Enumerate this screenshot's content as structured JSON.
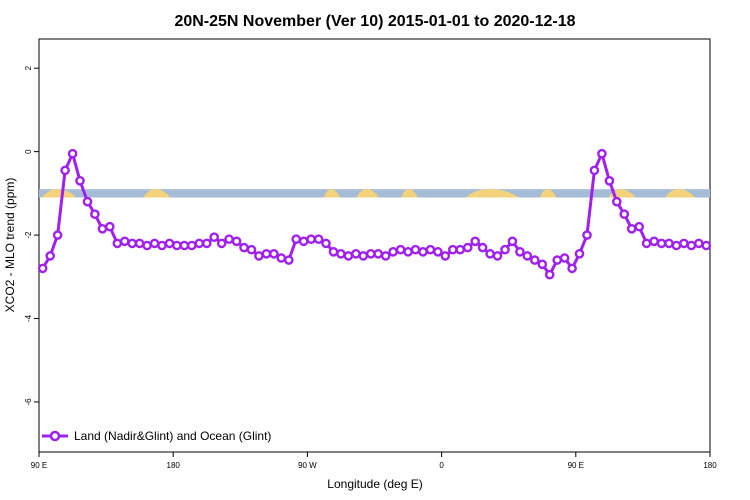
{
  "chart_data": {
    "type": "line",
    "title": "20N-25N November (Ver 10)   2015-01-01 to 2020-12-18",
    "xlabel": "Longitude (deg E)",
    "ylabel": "XCO2 - MLO trend (ppm)",
    "xlim": [
      90,
      540
    ],
    "ylim": [
      -7.2,
      2.7
    ],
    "x_ticks": [
      {
        "value": 90,
        "label": "90 E"
      },
      {
        "value": 180,
        "label": "180"
      },
      {
        "value": 270,
        "label": "90 W"
      },
      {
        "value": 360,
        "label": "0"
      },
      {
        "value": 450,
        "label": "90 E"
      },
      {
        "value": 540,
        "label": "180"
      }
    ],
    "y_ticks": [
      {
        "value": 2,
        "label": "2"
      },
      {
        "value": 0,
        "label": "0"
      },
      {
        "value": -2,
        "label": "-2"
      },
      {
        "value": -4,
        "label": "-4"
      },
      {
        "value": -6,
        "label": "-6"
      }
    ],
    "map_band": {
      "y_top": -0.9,
      "y_bottom": -1.1,
      "ocean_color": "#a6bcd6",
      "land_color": "#f2d27a"
    },
    "legend": {
      "label": "Land (Nadir&Glint) and Ocean (Glint)",
      "position": "bottom-left"
    },
    "series": [
      {
        "name": "Land (Nadir&Glint) and Ocean (Glint)",
        "color": "#a020f0",
        "x": [
          92.5,
          97.5,
          102.5,
          107.5,
          112.5,
          117.5,
          122.5,
          127.5,
          132.5,
          137.5,
          142.5,
          147.5,
          152.5,
          157.5,
          162.5,
          167.5,
          172.5,
          177.5,
          182.5,
          187.5,
          192.5,
          197.5,
          202.5,
          207.5,
          212.5,
          217.5,
          222.5,
          227.5,
          232.5,
          237.5,
          242.5,
          247.5,
          252.5,
          257.5,
          262.5,
          267.5,
          272.5,
          277.5,
          282.5,
          287.5,
          292.5,
          297.5,
          302.5,
          307.5,
          312.5,
          317.5,
          322.5,
          327.5,
          332.5,
          337.5,
          342.5,
          347.5,
          352.5,
          357.5,
          362.5,
          367.5,
          372.5,
          377.5,
          382.5,
          387.5,
          392.5,
          397.5,
          402.5,
          407.5,
          412.5,
          417.5,
          422.5,
          427.5,
          432.5,
          437.5,
          442.5,
          447.5,
          452.5,
          457.5,
          462.5,
          467.5,
          472.5,
          477.5,
          482.5,
          487.5,
          492.5,
          497.5,
          502.5,
          507.5,
          512.5,
          517.5,
          522.5,
          527.5,
          532.5,
          537.5
        ],
        "values": [
          -2.8,
          -2.5,
          -2.0,
          -0.45,
          -0.05,
          -0.7,
          -1.2,
          -1.5,
          -1.85,
          -1.8,
          -2.2,
          -2.15,
          -2.2,
          -2.2,
          -2.25,
          -2.2,
          -2.25,
          -2.2,
          -2.25,
          -2.25,
          -2.25,
          -2.2,
          -2.2,
          -2.05,
          -2.2,
          -2.1,
          -2.15,
          -2.3,
          -2.35,
          -2.5,
          -2.45,
          -2.45,
          -2.55,
          -2.6,
          -2.1,
          -2.15,
          -2.1,
          -2.1,
          -2.2,
          -2.4,
          -2.45,
          -2.5,
          -2.45,
          -2.5,
          -2.45,
          -2.45,
          -2.5,
          -2.4,
          -2.35,
          -2.4,
          -2.35,
          -2.4,
          -2.35,
          -2.4,
          -2.5,
          -2.35,
          -2.35,
          -2.3,
          -2.15,
          -2.3,
          -2.45,
          -2.5,
          -2.35,
          -2.15,
          -2.4,
          -2.5,
          -2.6,
          -2.7,
          -2.95,
          -2.6,
          -2.55,
          -2.8,
          -2.45,
          -2.0,
          -0.45,
          -0.05,
          -0.7,
          -1.2,
          -1.5,
          -1.85,
          -1.8,
          -2.2,
          -2.15,
          -2.2,
          -2.2,
          -2.25,
          -2.2,
          -2.25,
          -2.2,
          -2.25
        ]
      }
    ]
  }
}
